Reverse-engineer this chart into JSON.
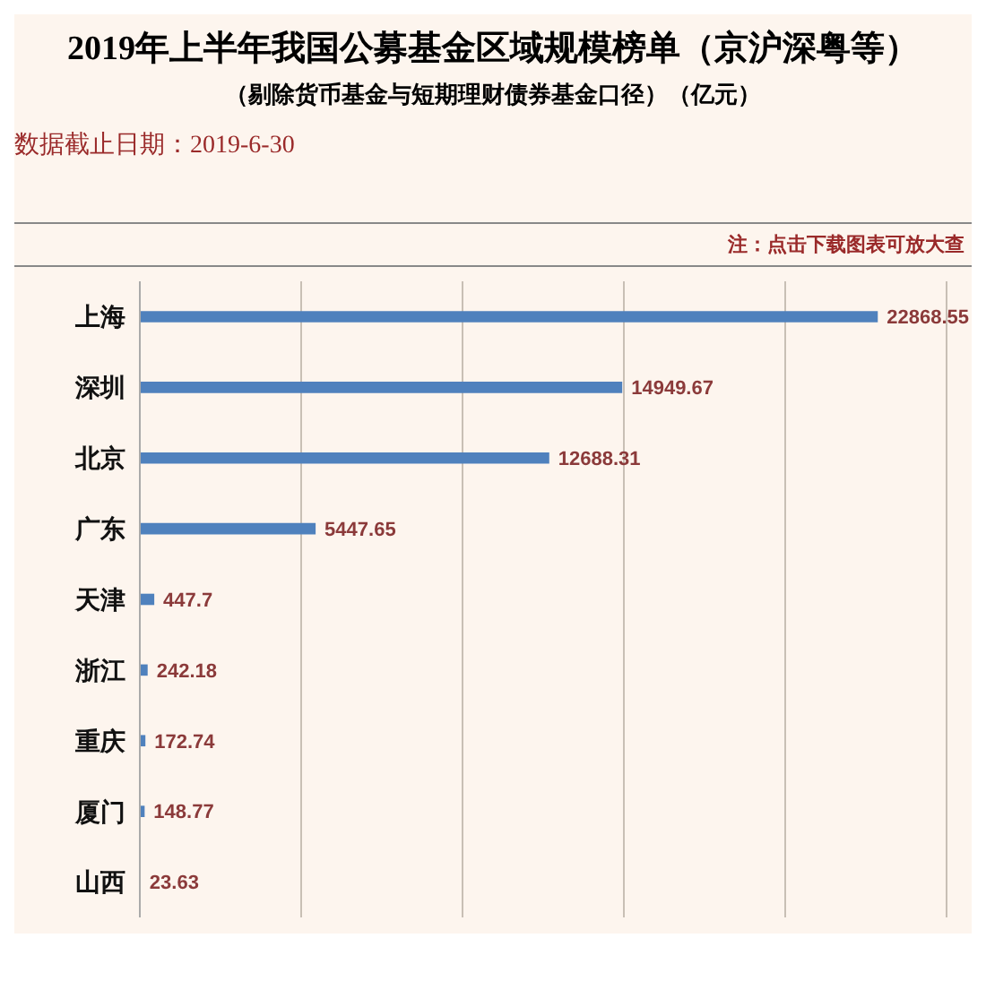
{
  "chart_data": {
    "type": "bar",
    "orientation": "horizontal",
    "title": "2019年上半年我国公募基金区域规模榜单（京沪深粤等）",
    "subtitle": "（剔除货币基金与短期理财债券基金口径）（亿元）",
    "annotations": [
      "数据截止日期：2019-6-30",
      "注：点击下载图表可放大查"
    ],
    "categories": [
      "上海",
      "深圳",
      "北京",
      "广东",
      "天津",
      "浙江",
      "重庆",
      "厦门",
      "山西"
    ],
    "values": [
      22868.55,
      14949.67,
      12688.31,
      5447.65,
      447.7,
      242.18,
      172.74,
      148.77,
      23.63
    ],
    "color": "#4f81bd",
    "data_labels": true,
    "tick_labels": "y",
    "grid": "x"
  }
}
